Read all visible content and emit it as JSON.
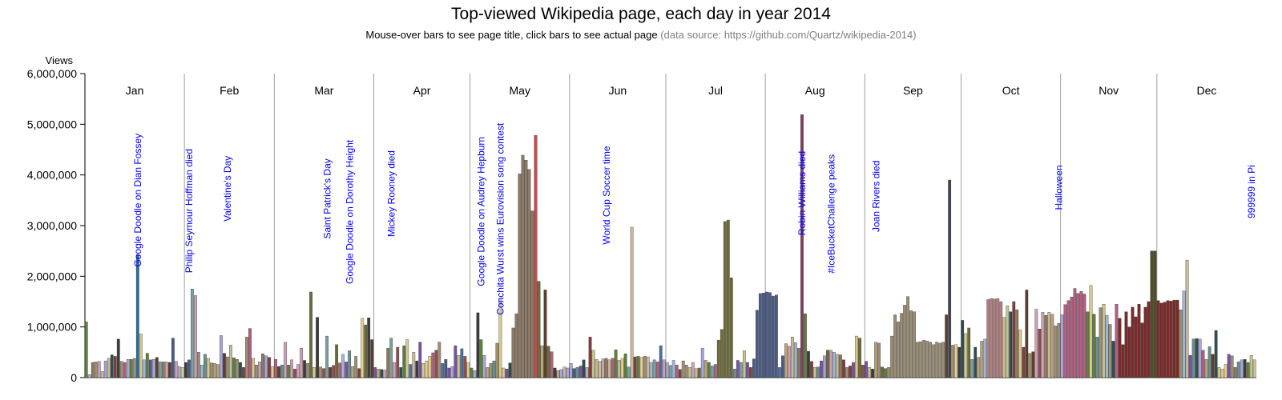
{
  "chart_data": {
    "type": "bar",
    "title": "Top-viewed Wikipedia page, each day in year 2014",
    "subtitle": "Mouse-over bars to see page title, click bars to see actual page",
    "source_note": "(data source: https://github.com/Quartz/wikipedia-2014)",
    "xlabel": "",
    "ylabel": "Views",
    "ylim": [
      0,
      6000000
    ],
    "yticks": [
      0,
      1000000,
      2000000,
      3000000,
      4000000,
      5000000,
      6000000
    ],
    "ytick_labels": [
      "0",
      "1,000,000",
      "2,000,000",
      "3,000,000",
      "4,000,000",
      "5,000,000",
      "6,000,000"
    ],
    "grid": false,
    "months": [
      {
        "label": "Jan",
        "days": 31,
        "values": [
          1100000,
          60000,
          300000,
          310000,
          320000,
          120000,
          330000,
          380000,
          450000,
          420000,
          760000,
          320000,
          300000,
          360000,
          360000,
          380000,
          2430000,
          860000,
          350000,
          480000,
          350000,
          360000,
          400000,
          310000,
          310000,
          310000,
          300000,
          780000,
          320000,
          220000,
          200000
        ]
      },
      {
        "label": "Feb",
        "days": 28,
        "values": [
          300000,
          350000,
          1750000,
          1620000,
          500000,
          250000,
          460000,
          380000,
          290000,
          280000,
          260000,
          830000,
          480000,
          410000,
          640000,
          390000,
          360000,
          300000,
          200000,
          800000,
          970000,
          380000,
          250000,
          310000,
          470000,
          430000,
          400000,
          220000
        ]
      },
      {
        "label": "Mar",
        "days": 31,
        "values": [
          360000,
          220000,
          250000,
          700000,
          250000,
          350000,
          170000,
          260000,
          580000,
          340000,
          280000,
          1690000,
          200000,
          1190000,
          210000,
          180000,
          820000,
          200000,
          240000,
          650000,
          290000,
          460000,
          310000,
          530000,
          220000,
          420000,
          180000,
          1170000,
          1040000,
          1180000,
          750000
        ]
      },
      {
        "label": "Apr",
        "days": 30,
        "values": [
          200000,
          170000,
          160000,
          150000,
          580000,
          780000,
          300000,
          600000,
          200000,
          630000,
          750000,
          260000,
          500000,
          330000,
          700000,
          280000,
          330000,
          420000,
          490000,
          540000,
          700000,
          280000,
          360000,
          190000,
          220000,
          630000,
          440000,
          570000,
          420000,
          300000
        ]
      },
      {
        "label": "May",
        "days": 31,
        "values": [
          190000,
          140000,
          1280000,
          750000,
          440000,
          200000,
          280000,
          330000,
          680000,
          1560000,
          190000,
          170000,
          290000,
          980000,
          1260000,
          4020000,
          4390000,
          4290000,
          4110000,
          3290000,
          4780000,
          1900000,
          630000,
          1730000,
          620000,
          510000,
          190000,
          140000,
          160000,
          210000,
          190000
        ]
      },
      {
        "label": "Jun",
        "days": 30,
        "values": [
          280000,
          180000,
          200000,
          230000,
          350000,
          200000,
          800000,
          540000,
          360000,
          320000,
          370000,
          380000,
          350000,
          380000,
          550000,
          340000,
          380000,
          470000,
          210000,
          2970000,
          410000,
          420000,
          400000,
          420000,
          410000,
          300000,
          350000,
          310000,
          630000,
          350000
        ]
      },
      {
        "label": "Jul",
        "days": 31,
        "values": [
          300000,
          240000,
          340000,
          250000,
          160000,
          330000,
          250000,
          200000,
          300000,
          180000,
          190000,
          580000,
          340000,
          300000,
          230000,
          260000,
          740000,
          950000,
          3080000,
          3110000,
          1970000,
          170000,
          340000,
          300000,
          530000,
          300000,
          200000,
          370000,
          1330000,
          1660000,
          1670000
        ]
      },
      {
        "label": "Aug",
        "days": 31,
        "values": [
          1690000,
          1680000,
          1610000,
          1630000,
          200000,
          430000,
          670000,
          620000,
          800000,
          690000,
          580000,
          5190000,
          1260000,
          520000,
          320000,
          200000,
          210000,
          330000,
          430000,
          540000,
          540000,
          500000,
          460000,
          450000,
          350000,
          200000,
          230000,
          300000,
          820000,
          780000,
          250000
        ]
      },
      {
        "label": "Sep",
        "days": 30,
        "values": [
          320000,
          200000,
          170000,
          700000,
          680000,
          210000,
          180000,
          200000,
          820000,
          1240000,
          1100000,
          1270000,
          1430000,
          1600000,
          1320000,
          1300000,
          700000,
          710000,
          740000,
          720000,
          700000,
          650000,
          700000,
          680000,
          700000,
          1240000,
          3900000,
          640000,
          650000,
          600000
        ]
      },
      {
        "label": "Oct",
        "days": 31,
        "values": [
          1130000,
          870000,
          980000,
          360000,
          600000,
          400000,
          720000,
          760000,
          1540000,
          1560000,
          1550000,
          1560000,
          1500000,
          1190000,
          1420000,
          1300000,
          1500000,
          1340000,
          940000,
          600000,
          1730000,
          480000,
          510000,
          1350000,
          960000,
          1290000,
          1230000,
          1290000,
          1250000,
          1020000,
          1070000
        ]
      },
      {
        "label": "Nov",
        "days": 30,
        "values": [
          1240000,
          1440000,
          1520000,
          1590000,
          1760000,
          1660000,
          1700000,
          1650000,
          1300000,
          1820000,
          1250000,
          800000,
          1380000,
          1450000,
          1230000,
          1050000,
          720000,
          1450000,
          1170000,
          650000,
          1300000,
          1000000,
          1390000,
          1200000,
          1450000,
          1080000,
          1390000,
          1500000,
          2500000,
          2500000
        ]
      },
      {
        "label": "Dec",
        "days": 31,
        "values": [
          1520000,
          1470000,
          1490000,
          1520000,
          1510000,
          1530000,
          1530000,
          1340000,
          1710000,
          2320000,
          440000,
          760000,
          770000,
          760000,
          540000,
          360000,
          610000,
          460000,
          930000,
          200000,
          170000,
          260000,
          460000,
          430000,
          200000,
          310000,
          350000,
          360000,
          300000,
          440000,
          350000
        ]
      }
    ],
    "annotations": [
      {
        "text": "Google Doodle on Dian Fossey",
        "month": 0,
        "day": 16,
        "at": 3500000
      },
      {
        "text": "Philip Seymour Hoffman died",
        "month": 1,
        "day": 1,
        "at": 3290000
      },
      {
        "text": "Valentine's Day",
        "month": 1,
        "day": 13,
        "at": 3730000
      },
      {
        "text": "Saint Patrick's Day",
        "month": 2,
        "day": 16,
        "at": 3530000
      },
      {
        "text": "Google Doodle on Dorothy Height",
        "month": 2,
        "day": 23,
        "at": 3270000
      },
      {
        "text": "Mickey Rooney died",
        "month": 3,
        "day": 5,
        "at": 3630000
      },
      {
        "text": "Google Doodle on Audrey Hepburn",
        "month": 4,
        "day": 3,
        "at": 3280000
      },
      {
        "text": "Conchita Wurst wins Eurovision song contest",
        "month": 4,
        "day": 9,
        "at": 3130000
      },
      {
        "text": "World Cup Soccer time",
        "month": 5,
        "day": 11,
        "at": 3600000
      },
      {
        "text": "Robin Williams died",
        "month": 7,
        "day": 11,
        "at": 3640000
      },
      {
        "text": "#IceBucketChallenge peaks",
        "month": 7,
        "day": 20,
        "at": 3230000
      },
      {
        "text": "Joan Rivers died",
        "month": 8,
        "day": 3,
        "at": 3580000
      },
      {
        "text": "Halloween",
        "month": 9,
        "day": 30,
        "at": 3750000
      },
      {
        "text": "999999 in Pi",
        "month": 11,
        "day": 29,
        "at": 3670000
      }
    ],
    "colors": [
      "#7b52a3",
      "#a6a6d9",
      "#8c7a5e",
      "#d7c98e",
      "#4a5a84",
      "#9b8f77",
      "#3c3c3c",
      "#6a8e8e",
      "#b9a37a",
      "#7f3f3f",
      "#cfa0b5",
      "#5f7f3f",
      "#c5c48e",
      "#a0b8d8",
      "#2f4f4f",
      "#b06080",
      "#e4cf8f",
      "#6b6b3b",
      "#9f8f6f",
      "#4f6f9f",
      "#8f4f4f",
      "#c9b99a",
      "#5a3f2f",
      "#7aa0a0"
    ],
    "highlight_colors": {
      "jan17": "#2a6e9a",
      "may21": "#c84a4a",
      "aug12": "#7f3f5f",
      "jul20": "#6b6b3b",
      "nov29": "#4d4d2a",
      "sep27": "#3f4252"
    }
  }
}
